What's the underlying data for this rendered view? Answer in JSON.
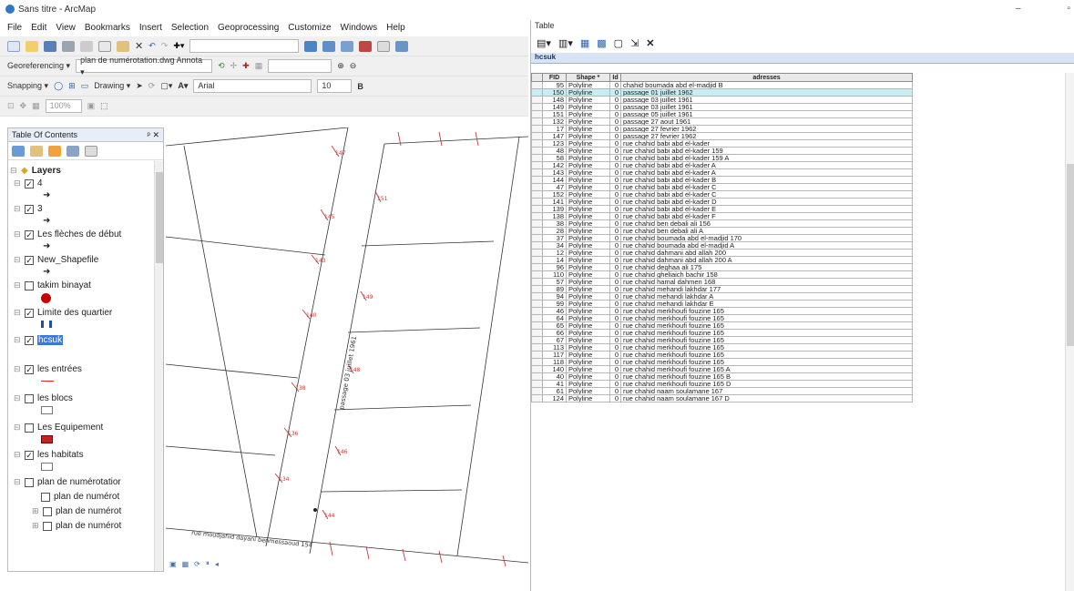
{
  "window": {
    "title": "Sans titre - ArcMap",
    "controls": [
      "–",
      "▫"
    ]
  },
  "menu": [
    "File",
    "Edit",
    "View",
    "Bookmarks",
    "Insert",
    "Selection",
    "Geoprocessing",
    "Customize",
    "Windows",
    "Help"
  ],
  "toolbar2": {
    "georef_label": "Georeferencing ▾",
    "georef_layer": "plan de numérotation.dwg Annota ▾"
  },
  "toolbar3": {
    "snapping_label": "Snapping ▾",
    "drawing_label": "Drawing ▾",
    "font": "Arial",
    "font_size": "10"
  },
  "toolbar4": {
    "zoom": "100%"
  },
  "toc": {
    "title": "Table Of Contents",
    "close": "ᵖ ✕",
    "root": "Layers",
    "layers": [
      {
        "name": "4",
        "checked": true,
        "symbol": "arrow-small"
      },
      {
        "name": "3",
        "checked": true,
        "symbol": "arrow-small"
      },
      {
        "name": "Les flèches de début",
        "checked": true,
        "symbol": "arrow-small"
      },
      {
        "name": "New_Shapefile",
        "checked": true,
        "symbol": "arrow-small"
      },
      {
        "name": "takim binayat",
        "checked": false,
        "symbol": "red-dot"
      },
      {
        "name": "Limite des quartier",
        "checked": true,
        "symbol": "blue-bars"
      },
      {
        "name": "hcsuk",
        "checked": true,
        "selected": true,
        "symbol": "none"
      },
      {
        "name": "les entrées",
        "checked": true,
        "symbol": "red-line"
      },
      {
        "name": "les blocs",
        "checked": false,
        "symbol": "empty-box"
      },
      {
        "name": "Les Equipement",
        "checked": false,
        "symbol": "red-box"
      },
      {
        "name": "les habitats",
        "checked": true,
        "symbol": "empty-box"
      },
      {
        "name": "plan de numérotatior",
        "checked": false,
        "symbol": "none"
      },
      {
        "name": "plan de numérot",
        "checked": false,
        "symbol": "none",
        "indent": true
      },
      {
        "name": "plan de numérot",
        "checked": false,
        "symbol": "none",
        "indent": true
      },
      {
        "name": "plan de numérot",
        "checked": false,
        "symbol": "none",
        "indent": true
      }
    ]
  },
  "map": {
    "street_labels": [
      "passage 03 juillet 1961",
      "rue moudjahid dayani benmessaoud 154"
    ]
  },
  "table": {
    "title": "Table",
    "tab": "hcsuk",
    "columns": [
      "FID",
      "Shape *",
      "Id",
      "adresses"
    ],
    "rows": [
      [
        "95",
        "Polyline",
        "0",
        "chahid boumada abd el-madjid B"
      ],
      [
        "150",
        "Polyline",
        "0",
        "passage 01 juillet 1962"
      ],
      [
        "148",
        "Polyline",
        "0",
        "passage 03 juillet 1961"
      ],
      [
        "149",
        "Polyline",
        "0",
        "passage 03 juillet 1961"
      ],
      [
        "151",
        "Polyline",
        "0",
        "passage 05 juillet 1961"
      ],
      [
        "132",
        "Polyline",
        "0",
        "passage 27 aout 1961"
      ],
      [
        "17",
        "Polyline",
        "0",
        "passage 27 fevrier 1962"
      ],
      [
        "147",
        "Polyline",
        "0",
        "passage 27 fevrier 1962"
      ],
      [
        "123",
        "Polyline",
        "0",
        "rue chahid babi abd el-kader"
      ],
      [
        "48",
        "Polyline",
        "0",
        "rue chahid babi abd el-kader 159"
      ],
      [
        "58",
        "Polyline",
        "0",
        "rue chahid babi abd el-kader 159 A"
      ],
      [
        "142",
        "Polyline",
        "0",
        "rue chahid babi abd el-kader A"
      ],
      [
        "143",
        "Polyline",
        "0",
        "rue chahid babi abd el-kader A"
      ],
      [
        "144",
        "Polyline",
        "0",
        "rue chahid babi abd el-kader B"
      ],
      [
        "47",
        "Polyline",
        "0",
        "rue chahid babi abd el-kader C"
      ],
      [
        "152",
        "Polyline",
        "0",
        "rue chahid babi abd el-kader C"
      ],
      [
        "141",
        "Polyline",
        "0",
        "rue chahid babi abd el-kader D"
      ],
      [
        "139",
        "Polyline",
        "0",
        "rue chahid babi abd el-kader E"
      ],
      [
        "138",
        "Polyline",
        "0",
        "rue chahid babi abd el-kader F"
      ],
      [
        "38",
        "Polyline",
        "0",
        "rue chahid ben debali ali 156"
      ],
      [
        "28",
        "Polyline",
        "0",
        "rue chahid ben debali ali A"
      ],
      [
        "37",
        "Polyline",
        "0",
        "rue chahid boumada abd el-madjid 170"
      ],
      [
        "34",
        "Polyline",
        "0",
        "rue chahid boumada abd el-madjid A"
      ],
      [
        "12",
        "Polyline",
        "0",
        "rue chahid dahmani abd allah 200"
      ],
      [
        "14",
        "Polyline",
        "0",
        "rue chahid dahmani abd allah 200 A"
      ],
      [
        "96",
        "Polyline",
        "0",
        "rue chahid deghaa ali 175"
      ],
      [
        "110",
        "Polyline",
        "0",
        "rue chahid gheliaich bachir 158"
      ],
      [
        "57",
        "Polyline",
        "0",
        "rue chahid hamal dahmen 168"
      ],
      [
        "89",
        "Polyline",
        "0",
        "rue chahid mehandi lakhdar 177"
      ],
      [
        "94",
        "Polyline",
        "0",
        "rue chahid mehandi lakhdar A"
      ],
      [
        "99",
        "Polyline",
        "0",
        "rue chahid mehandi lakhdar E"
      ],
      [
        "46",
        "Polyline",
        "0",
        "rue chahid merkhoufi fouzine 165"
      ],
      [
        "64",
        "Polyline",
        "0",
        "rue chahid merkhoufi fouzine 165"
      ],
      [
        "65",
        "Polyline",
        "0",
        "rue chahid merkhoufi fouzine 165"
      ],
      [
        "66",
        "Polyline",
        "0",
        "rue chahid merkhoufi fouzine 165"
      ],
      [
        "67",
        "Polyline",
        "0",
        "rue chahid merkhoufi fouzine 165"
      ],
      [
        "113",
        "Polyline",
        "0",
        "rue chahid merkhoufi fouzine 165"
      ],
      [
        "117",
        "Polyline",
        "0",
        "rue chahid merkhoufi fouzine 165"
      ],
      [
        "118",
        "Polyline",
        "0",
        "rue chahid merkhoufi fouzine 165"
      ],
      [
        "140",
        "Polyline",
        "0",
        "rue chahid merkhoufi fouzine 165 A"
      ],
      [
        "40",
        "Polyline",
        "0",
        "rue chahid merkhoufi fouzine 165 B"
      ],
      [
        "41",
        "Polyline",
        "0",
        "rue chahid merkhoufi fouzine 165 D"
      ],
      [
        "61",
        "Polyline",
        "0",
        "rue chahid naam soulamane 167"
      ],
      [
        "124",
        "Polyline",
        "0",
        "rue chahid naam soulamane 167 D"
      ]
    ]
  }
}
